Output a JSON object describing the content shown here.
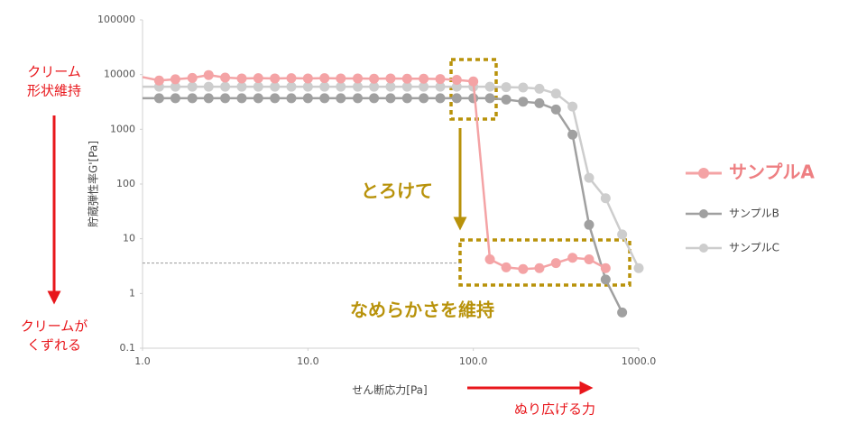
{
  "chart_data": {
    "type": "line",
    "x_label": "せん断応力[Pa]",
    "y_label": "貯蔵弾性率G'[Pa]",
    "xscale": "log",
    "yscale": "log",
    "xlim": [
      1,
      1000
    ],
    "ylim": [
      0.1,
      100000
    ],
    "xticks": [
      {
        "value": 1,
        "label": "1.0"
      },
      {
        "value": 10,
        "label": "10.0"
      },
      {
        "value": 100,
        "label": "100.0"
      },
      {
        "value": 1000,
        "label": "1000.0"
      }
    ],
    "yticks": [
      100000,
      10000,
      1000,
      100,
      10,
      1,
      0.1
    ],
    "x": [
      1,
      1.26,
      1.58,
      2,
      2.51,
      3.16,
      3.98,
      5.01,
      6.31,
      7.94,
      10,
      12.6,
      15.8,
      20,
      25.1,
      31.6,
      39.8,
      50.1,
      63.1,
      79.4,
      100,
      126,
      158,
      200,
      251,
      316,
      398,
      501,
      631,
      794,
      1000
    ],
    "series": [
      {
        "name": "サンプルA",
        "color": "#f4a3a5",
        "values": [
          9000,
          7800,
          8200,
          8700,
          9800,
          8800,
          8500,
          8600,
          8500,
          8600,
          8500,
          8600,
          8500,
          8500,
          8400,
          8500,
          8400,
          8400,
          8300,
          8000,
          7500,
          4.2,
          3.0,
          2.8,
          2.9,
          3.6,
          4.5,
          4.2,
          2.9,
          null,
          null
        ]
      },
      {
        "name": "サンプルB",
        "color": "#a0a0a0",
        "values": [
          3700,
          3700,
          3700,
          3700,
          3700,
          3700,
          3700,
          3700,
          3700,
          3700,
          3700,
          3700,
          3700,
          3700,
          3700,
          3700,
          3700,
          3700,
          3700,
          3700,
          3700,
          3700,
          3500,
          3200,
          3000,
          2300,
          800,
          18,
          1.8,
          0.45,
          null
        ]
      },
      {
        "name": "サンプルC",
        "color": "#cdcdcd",
        "values": [
          6000,
          6000,
          6000,
          6000,
          6000,
          6000,
          6000,
          6000,
          6000,
          6000,
          6000,
          6000,
          6000,
          6000,
          6000,
          6000,
          6000,
          6000,
          6000,
          6000,
          6000,
          6000,
          5900,
          5800,
          5500,
          4500,
          2600,
          130,
          55,
          12,
          2.9
        ]
      }
    ],
    "reference_line": 3.6,
    "annotations": {
      "cream_kept": [
        "クリーム",
        "形状維持"
      ],
      "cream_broken": [
        "クリームが",
        "くずれる"
      ],
      "melting": "とろけて",
      "smooth": "なめらかさを維持",
      "spreading": "ぬり広げる力"
    }
  }
}
